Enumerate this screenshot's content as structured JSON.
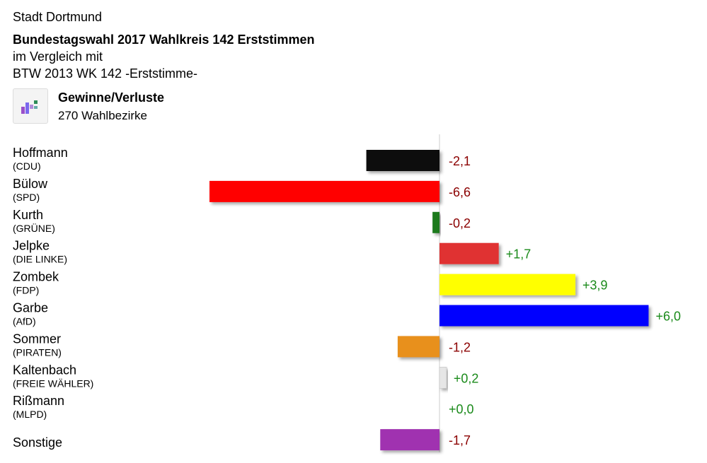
{
  "header": {
    "city": "Stadt Dortmund",
    "title": "Bundestagswahl 2017 Wahlkreis 142 Erststimmen",
    "subtitle_line1": "im Vergleich mit",
    "subtitle_line2": "BTW 2013 WK 142 -Erststimme-"
  },
  "legend": {
    "icon": "bar-chart-gains-losses-icon",
    "title": "Gewinne/Verluste",
    "subtitle": "270 Wahlbezirke"
  },
  "colors": {
    "positive_label": "#1a8a1a",
    "negative_label": "#8b0000",
    "zero_line": "#cccccc"
  },
  "chart_data": {
    "type": "bar",
    "orientation": "horizontal",
    "categories": [
      {
        "name": "Hoffmann",
        "party": "(CDU)"
      },
      {
        "name": "Bülow",
        "party": "(SPD)"
      },
      {
        "name": "Kurth",
        "party": "(GRÜNE)"
      },
      {
        "name": "Jelpke",
        "party": "(DIE LINKE)"
      },
      {
        "name": "Zombek",
        "party": "(FDP)"
      },
      {
        "name": "Garbe",
        "party": "(AfD)"
      },
      {
        "name": "Sommer",
        "party": "(PIRATEN)"
      },
      {
        "name": "Kaltenbach",
        "party": "(FREIE WÄHLER)"
      },
      {
        "name": "Rißmann",
        "party": "(MLPD)"
      },
      {
        "name": "Sonstige",
        "party": ""
      }
    ],
    "values": [
      -2.1,
      -6.6,
      -0.2,
      1.7,
      3.9,
      6.0,
      -1.2,
      0.2,
      0.0,
      -1.7
    ],
    "labels": [
      "-2,1",
      "-6,6",
      "-0,2",
      "+1,7",
      "+3,9",
      "+6,0",
      "-1,2",
      "+0,2",
      "+0,0",
      "-1,7"
    ],
    "bar_colors": [
      "#111111",
      "#ff0000",
      "#1e7a1e",
      "#e03030",
      "#ffff00",
      "#0000ff",
      "#e8901e",
      "#e6e6e6",
      "#999999",
      "#a030b0"
    ],
    "xlim": [
      -6.6,
      6.0
    ]
  }
}
